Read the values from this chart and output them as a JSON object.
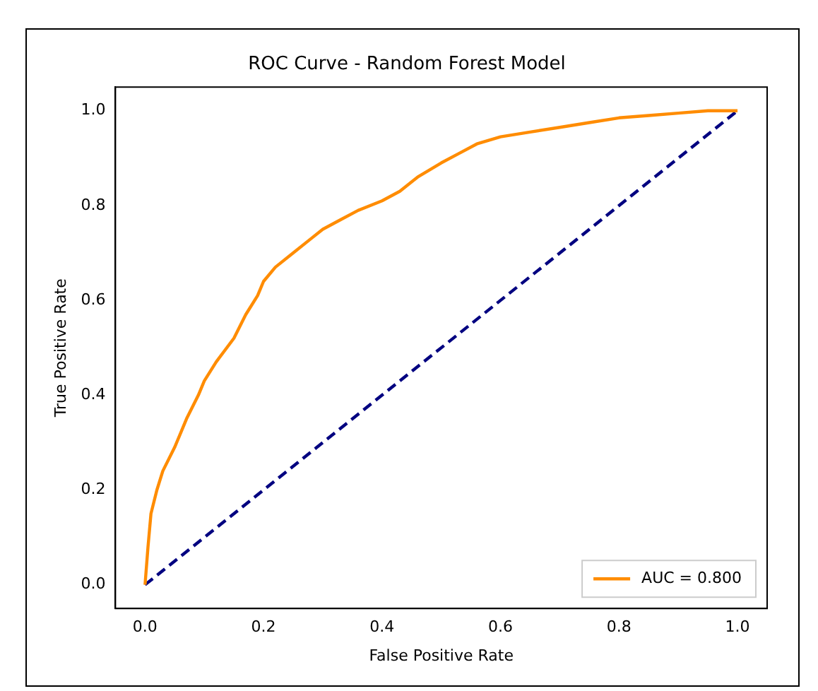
{
  "chart_data": {
    "type": "line",
    "title": "ROC Curve - Random Forest Model",
    "xlabel": "False Positive Rate",
    "ylabel": "True Positive Rate",
    "series": [
      {
        "name": "AUC = 0.800",
        "color": "#ff8c00",
        "line_style": "solid",
        "x": [
          0,
          0.005,
          0.01,
          0.02,
          0.03,
          0.05,
          0.07,
          0.09,
          0.1,
          0.12,
          0.15,
          0.17,
          0.19,
          0.2,
          0.22,
          0.25,
          0.28,
          0.3,
          0.33,
          0.36,
          0.4,
          0.43,
          0.46,
          0.5,
          0.53,
          0.56,
          0.6,
          0.65,
          0.7,
          0.75,
          0.8,
          0.85,
          0.9,
          0.95,
          1
        ],
        "values": [
          0,
          0.08,
          0.15,
          0.2,
          0.24,
          0.29,
          0.35,
          0.4,
          0.43,
          0.47,
          0.52,
          0.57,
          0.61,
          0.64,
          0.67,
          0.7,
          0.73,
          0.75,
          0.77,
          0.79,
          0.81,
          0.83,
          0.86,
          0.89,
          0.91,
          0.93,
          0.945,
          0.955,
          0.965,
          0.975,
          0.985,
          0.99,
          0.995,
          1,
          1
        ]
      },
      {
        "color": "#000080",
        "line_style": "dashed",
        "x": [
          0,
          1
        ],
        "values": [
          0,
          1
        ]
      }
    ],
    "xlim": [
      -0.05,
      1.05
    ],
    "ylim": [
      -0.05,
      1.05
    ],
    "xticks": [
      {
        "value": 0,
        "label": "0.0"
      },
      0.2,
      0.4,
      0.6,
      0.8,
      {
        "value": 1,
        "label": "1.0"
      }
    ],
    "yticks": [
      {
        "value": 0,
        "label": "0.0"
      },
      0.2,
      0.4,
      0.6,
      0.8,
      {
        "value": 1,
        "label": "1.0"
      }
    ],
    "grid": false,
    "legend": "bottom right",
    "marker": "none"
  }
}
